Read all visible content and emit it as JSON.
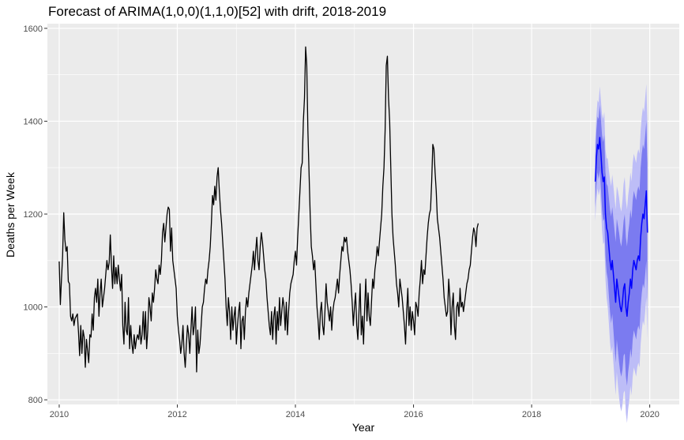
{
  "chart_data": {
    "type": "line",
    "title": "Forecast of ARIMA(1,0,0)(1,1,0)[52] with drift, 2018-2019",
    "xlabel": "Year",
    "ylabel": "Deaths per Week",
    "xlim": [
      2009.8,
      2020.5
    ],
    "ylim": [
      790,
      1610
    ],
    "x_ticks": [
      2010,
      2012,
      2014,
      2016,
      2018,
      2020
    ],
    "y_ticks": [
      800,
      1000,
      1200,
      1400,
      1600
    ],
    "grid": true,
    "colors": {
      "panel": "#ebebeb",
      "grid_major": "#ffffff",
      "history_line": "#000000",
      "forecast_line": "#0000ff",
      "interval_80": "#7b7bf0",
      "interval_95": "#bdbdf7"
    },
    "history": {
      "start": 2010.0,
      "step": 0.01923,
      "values": [
        1098,
        1005,
        1060,
        1110,
        1203,
        1145,
        1120,
        1130,
        1055,
        1050,
        980,
        970,
        985,
        960,
        975,
        980,
        985,
        945,
        895,
        960,
        900,
        950,
        935,
        870,
        930,
        905,
        880,
        940,
        935,
        985,
        950,
        1020,
        1040,
        1010,
        1060,
        980,
        1030,
        1060,
        1000,
        1020,
        1040,
        1070,
        1100,
        1080,
        1095,
        1155,
        1090,
        1040,
        1110,
        1050,
        1085,
        1050,
        1090,
        1060,
        1035,
        1070,
        960,
        920,
        1010,
        950,
        940,
        1020,
        910,
        960,
        920,
        900,
        940,
        910,
        930,
        940,
        930,
        960,
        920,
        940,
        990,
        930,
        990,
        910,
        950,
        1020,
        1000,
        970,
        1030,
        1010,
        1040,
        1080,
        1060,
        1050,
        1090,
        1070,
        1100,
        1160,
        1180,
        1140,
        1170,
        1200,
        1215,
        1210,
        1120,
        1170,
        1100,
        1080,
        1060,
        1040,
        980,
        950,
        930,
        900,
        920,
        960,
        900,
        870,
        920,
        960,
        940,
        900,
        950,
        1000,
        940,
        960,
        1000,
        860,
        950,
        900,
        920,
        960,
        1000,
        1010,
        1040,
        1060,
        1050,
        1080,
        1100,
        1130,
        1180,
        1240,
        1220,
        1260,
        1230,
        1280,
        1300,
        1250,
        1210,
        1180,
        1140,
        1100,
        1060,
        1000,
        960,
        1020,
        990,
        930,
        1000,
        950,
        980,
        1000,
        920,
        960,
        990,
        1010,
        910,
        970,
        980,
        930,
        990,
        1020,
        1000,
        1030,
        1050,
        1070,
        1090,
        1120,
        1080,
        1120,
        1150,
        1100,
        1080,
        1130,
        1160,
        1140,
        1110,
        1080,
        1060,
        1020,
        990,
        960,
        940,
        990,
        930,
        980,
        1000,
        920,
        990,
        950,
        1020,
        960,
        990,
        1020,
        1000,
        950,
        1010,
        940,
        990,
        1030,
        1050,
        1060,
        1070,
        1100,
        1120,
        1090,
        1150,
        1200,
        1250,
        1300,
        1310,
        1400,
        1450,
        1560,
        1520,
        1380,
        1290,
        1200,
        1130,
        1110,
        1080,
        1100,
        1050,
        1000,
        970,
        930,
        990,
        1010,
        960,
        940,
        990,
        1050,
        1010,
        990,
        970,
        1000,
        950,
        990,
        1010,
        1020,
        1040,
        1060,
        1030,
        1070,
        1100,
        1130,
        1120,
        1150,
        1140,
        1150,
        1120,
        1100,
        1080,
        1050,
        1010,
        960,
        1000,
        1030,
        960,
        930,
        990,
        1050,
        940,
        980,
        920,
        1000,
        1060,
        970,
        1030,
        980,
        960,
        1010,
        1060,
        1040,
        1080,
        1100,
        1130,
        1110,
        1140,
        1170,
        1200,
        1260,
        1300,
        1380,
        1520,
        1540,
        1450,
        1400,
        1300,
        1200,
        1150,
        1120,
        1090,
        1050,
        1030,
        1000,
        1060,
        1040,
        1020,
        990,
        960,
        920,
        990,
        1040,
        960,
        1000,
        950,
        990,
        970,
        940,
        1010,
        1000,
        980,
        1030,
        1060,
        1100,
        1050,
        1080,
        1070,
        1110,
        1150,
        1180,
        1200,
        1210,
        1270,
        1350,
        1340,
        1290,
        1250,
        1190,
        1170,
        1150,
        1120,
        1090,
        1060,
        1020,
        1000,
        980,
        990,
        1060,
        1020,
        940,
        1000,
        1030,
        960,
        930,
        1000,
        1010,
        980,
        1040,
        1000,
        1010,
        990,
        1010,
        1030,
        1050,
        1060,
        1080,
        1090,
        1120,
        1150,
        1170,
        1160,
        1130,
        1170,
        1180
      ]
    },
    "forecast": {
      "start": 2019.077,
      "step": 0.01923,
      "mean": [
        1270,
        1320,
        1350,
        1340,
        1365,
        1330,
        1290,
        1270,
        1280,
        1200,
        1170,
        1160,
        1130,
        1100,
        1080,
        1100,
        1070,
        1040,
        1010,
        1060,
        1040,
        1020,
        1000,
        990,
        1010,
        1040,
        1050,
        1000,
        980,
        1010,
        1030,
        1060,
        1040,
        1080,
        1100,
        1090,
        1080,
        1100,
        1110,
        1100,
        1150,
        1180,
        1200,
        1190,
        1220,
        1250,
        1160
      ],
      "lo80": [
        1215,
        1260,
        1290,
        1275,
        1295,
        1255,
        1210,
        1185,
        1190,
        1110,
        1075,
        1060,
        1025,
        990,
        965,
        985,
        950,
        915,
        880,
        930,
        905,
        880,
        860,
        850,
        865,
        895,
        900,
        850,
        830,
        860,
        880,
        910,
        890,
        930,
        950,
        940,
        930,
        950,
        960,
        950,
        1000,
        1030,
        1050,
        1040,
        1070,
        1100,
        1010
      ],
      "hi80": [
        1325,
        1380,
        1410,
        1405,
        1435,
        1405,
        1370,
        1355,
        1370,
        1290,
        1265,
        1260,
        1235,
        1210,
        1195,
        1215,
        1190,
        1165,
        1140,
        1190,
        1175,
        1160,
        1140,
        1130,
        1155,
        1185,
        1200,
        1150,
        1130,
        1160,
        1180,
        1210,
        1190,
        1230,
        1250,
        1240,
        1230,
        1250,
        1260,
        1250,
        1300,
        1330,
        1350,
        1340,
        1370,
        1400,
        1310
      ],
      "lo95": [
        1185,
        1230,
        1255,
        1240,
        1255,
        1215,
        1165,
        1135,
        1140,
        1060,
        1020,
        1000,
        965,
        925,
        900,
        915,
        880,
        845,
        810,
        860,
        830,
        805,
        785,
        775,
        790,
        815,
        820,
        770,
        750,
        780,
        800,
        830,
        810,
        850,
        870,
        860,
        850,
        870,
        880,
        870,
        920,
        950,
        970,
        960,
        990,
        1020,
        930
      ],
      "hi95": [
        1355,
        1410,
        1445,
        1440,
        1475,
        1445,
        1415,
        1405,
        1420,
        1340,
        1320,
        1320,
        1295,
        1275,
        1260,
        1285,
        1260,
        1235,
        1210,
        1260,
        1250,
        1235,
        1215,
        1205,
        1230,
        1265,
        1280,
        1230,
        1210,
        1240,
        1260,
        1290,
        1270,
        1310,
        1330,
        1320,
        1310,
        1330,
        1340,
        1330,
        1380,
        1410,
        1430,
        1420,
        1450,
        1480,
        1390
      ]
    }
  }
}
